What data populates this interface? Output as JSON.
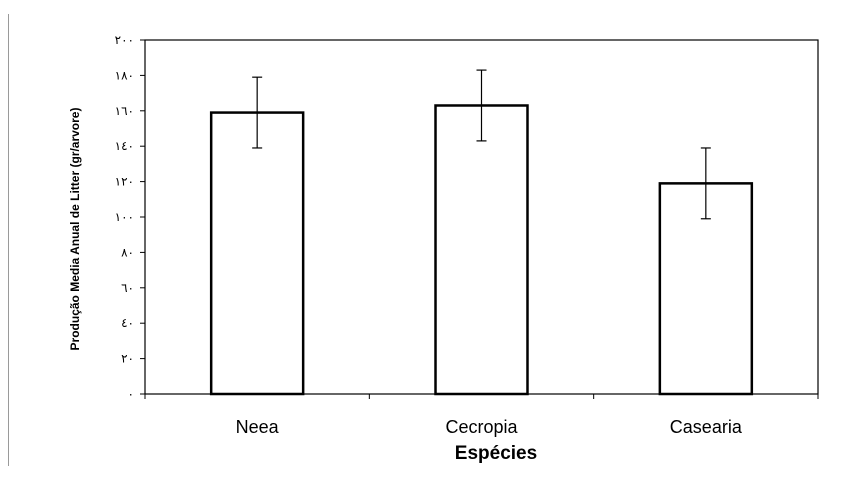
{
  "chart_data": {
    "type": "bar",
    "categories": [
      "Neea",
      "Cecropia",
      "Casearia"
    ],
    "values": [
      159,
      163,
      119
    ],
    "errors": [
      20,
      20,
      20
    ],
    "xlabel": "Espécies",
    "ylabel": "Produção Media Anual de Litter (gr/arvore)",
    "ylim": [
      0,
      200
    ],
    "yticks": [
      0,
      20,
      40,
      60,
      80,
      100,
      120,
      140,
      160,
      180,
      200
    ],
    "ytick_labels": [
      "٠",
      "٢٠",
      "٤٠",
      "٦٠",
      "٨٠",
      "١٠٠",
      "١٢٠",
      "١٤٠",
      "١٦٠",
      "١٨٠",
      "٢٠٠"
    ],
    "grid": false,
    "legend": "none",
    "colors": {
      "bar_fill": "#ffffff",
      "bar_stroke": "#000000",
      "axis": "#000000"
    }
  }
}
